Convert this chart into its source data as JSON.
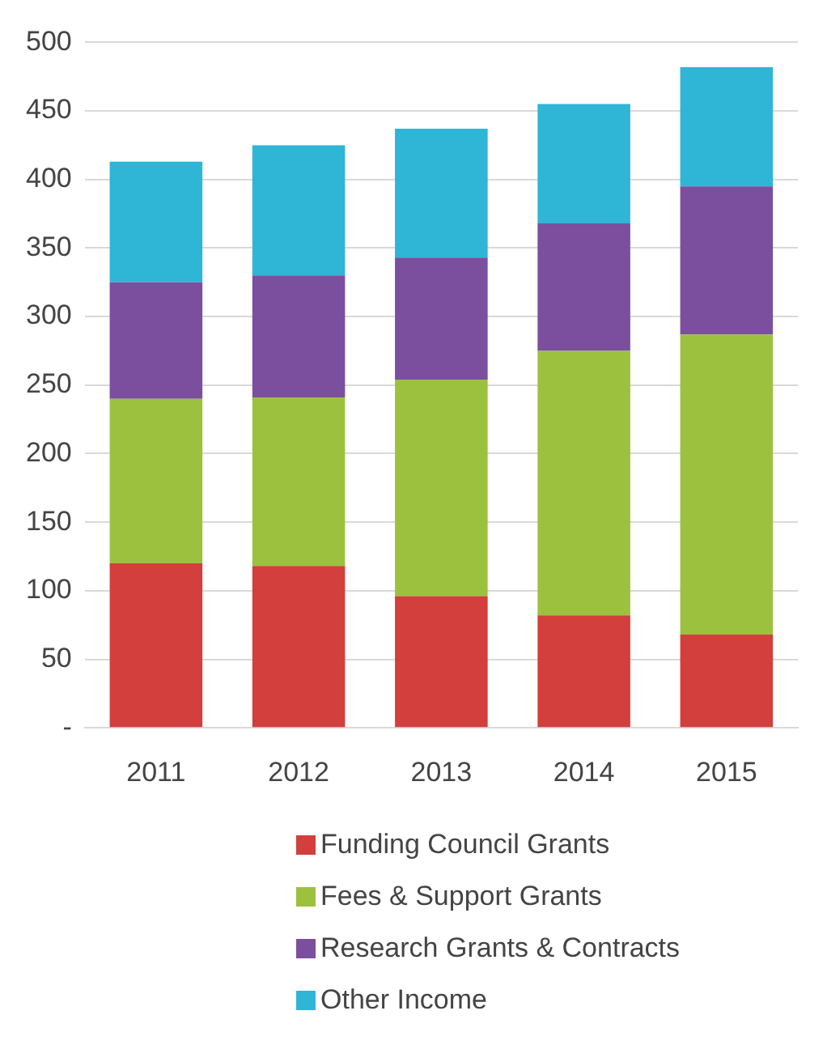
{
  "chart_data": {
    "type": "bar",
    "stacked": true,
    "categories": [
      "2011",
      "2012",
      "2013",
      "2014",
      "2015"
    ],
    "series": [
      {
        "name": "Funding Council Grants",
        "color": "#d23f3c",
        "values": [
          120,
          118,
          96,
          82,
          68
        ]
      },
      {
        "name": "Fees & Support Grants",
        "color": "#9cc13e",
        "values": [
          120,
          123,
          158,
          193,
          219
        ]
      },
      {
        "name": "Research Grants & Contracts",
        "color": "#7b4f9e",
        "values": [
          85,
          89,
          89,
          93,
          108
        ]
      },
      {
        "name": "Other Income",
        "color": "#2fb5d6",
        "values": [
          88,
          95,
          94,
          87,
          87
        ]
      }
    ],
    "ylim": [
      0,
      500
    ],
    "yticks": [
      {
        "value": 0,
        "label": "-"
      },
      50,
      100,
      150,
      200,
      250,
      300,
      350,
      400,
      450,
      500
    ],
    "grid": "y",
    "legend": "bottom"
  }
}
